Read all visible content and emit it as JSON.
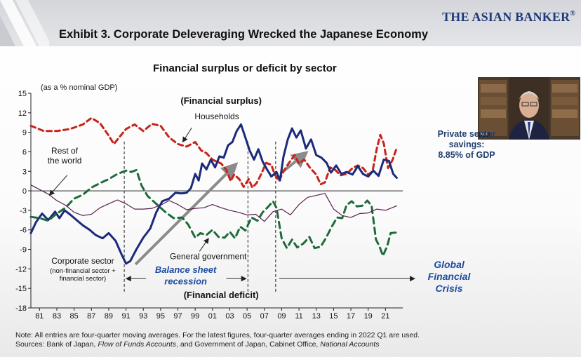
{
  "brand": "THE ASIAN BANKER",
  "brand_registered": "®",
  "exhibit_title": "Exhibit 3. Corporate Deleveraging Wrecked the Japanese Economy",
  "chart_title": "Financial surplus or deficit by sector",
  "speaker_tag": "Koo",
  "side_note": [
    "Private sector",
    "savings:",
    "8.85% of GDP"
  ],
  "gfc_label": [
    "Global",
    "Financial",
    "Crisis"
  ],
  "footnote": {
    "line1": "Note: All entries are four-quarter moving averages. For the latest figures, four-quarter averages ending in 2022 Q1 are used.",
    "line2_pre": "Sources: Bank of Japan, ",
    "line2_src1": "Flow of Funds Accounts",
    "line2_mid": ", and Government of Japan, Cabinet Office, ",
    "line2_src2": "National Accounts"
  },
  "colors": {
    "households": "#c8231b",
    "corporate": "#1b2a7a",
    "government": "#1e6b3a",
    "rest_of_world": "#5a1f4e",
    "accent_blue": "#1e4ca1",
    "brand_blue": "#1f3a78"
  },
  "chart_data": {
    "type": "line",
    "title": "Financial surplus or deficit by sector",
    "ylabel": "(as a % nominal GDP)",
    "ylim": [
      -18,
      15
    ],
    "yticks": [
      15,
      12,
      9,
      6,
      3,
      0,
      -3,
      -6,
      -9,
      -12,
      -15,
      -18
    ],
    "xlim": [
      1980,
      2023
    ],
    "xtick_years": [
      1981,
      1983,
      1985,
      1987,
      1989,
      1991,
      1993,
      1995,
      1997,
      1999,
      2001,
      2003,
      2005,
      2007,
      2009,
      2011,
      2013,
      2015,
      2017,
      2019,
      2021
    ],
    "xtick_labels": [
      "81",
      "83",
      "85",
      "87",
      "89",
      "91",
      "93",
      "95",
      "97",
      "99",
      "01",
      "03",
      "05",
      "07",
      "09",
      "11",
      "13",
      "15",
      "17",
      "19",
      "21"
    ],
    "grid": false,
    "series": [
      {
        "name": "Households",
        "style": "dashed",
        "points": [
          [
            1980,
            10
          ],
          [
            1981.5,
            9.2
          ],
          [
            1983,
            9.2
          ],
          [
            1984.5,
            9.5
          ],
          [
            1986,
            10.2
          ],
          [
            1987,
            11.2
          ],
          [
            1988,
            10.4
          ],
          [
            1989,
            8.5
          ],
          [
            1989.6,
            7.2
          ],
          [
            1990.2,
            8.2
          ],
          [
            1991,
            9.5
          ],
          [
            1992,
            10.2
          ],
          [
            1993,
            9.2
          ],
          [
            1994,
            10.3
          ],
          [
            1995,
            10
          ],
          [
            1996,
            8.2
          ],
          [
            1997,
            7.2
          ],
          [
            1998,
            6.8
          ],
          [
            1999,
            7.5
          ],
          [
            1999.7,
            6.2
          ],
          [
            2000.3,
            5.8
          ],
          [
            2001,
            4.8
          ],
          [
            2002,
            4.2
          ],
          [
            2002.6,
            3.2
          ],
          [
            2003.1,
            1.5
          ],
          [
            2003.5,
            2.5
          ],
          [
            2004.1,
            1.8
          ],
          [
            2004.6,
            0.6
          ],
          [
            2005.2,
            1.8
          ],
          [
            2005.6,
            0.5
          ],
          [
            2006.1,
            1.2
          ],
          [
            2006.6,
            2.5
          ],
          [
            2007.2,
            4.3
          ],
          [
            2007.8,
            4
          ],
          [
            2008.2,
            2.5
          ],
          [
            2008.7,
            1.5
          ],
          [
            2009.2,
            3
          ],
          [
            2009.8,
            4.2
          ],
          [
            2010.5,
            5.5
          ],
          [
            2011,
            4.2
          ],
          [
            2011.6,
            4.8
          ],
          [
            2012.3,
            3.5
          ],
          [
            2013,
            2.5
          ],
          [
            2013.5,
            1
          ],
          [
            2014,
            1.3
          ],
          [
            2014.6,
            3.6
          ],
          [
            2015.2,
            3.2
          ],
          [
            2015.8,
            2.4
          ],
          [
            2016.5,
            2.6
          ],
          [
            2017.2,
            3.5
          ],
          [
            2017.8,
            3.9
          ],
          [
            2018.4,
            3.5
          ],
          [
            2019,
            2.5
          ],
          [
            2019.5,
            3
          ],
          [
            2020,
            6.5
          ],
          [
            2020.4,
            8.6
          ],
          [
            2020.8,
            7.3
          ],
          [
            2021.3,
            3.5
          ],
          [
            2021.8,
            4.7
          ],
          [
            2022.3,
            6.6
          ]
        ]
      },
      {
        "name": "Corporate sector",
        "style": "solid",
        "points": [
          [
            1980,
            -6.5
          ],
          [
            1980.6,
            -4.8
          ],
          [
            1981.3,
            -3.5
          ],
          [
            1982,
            -4.5
          ],
          [
            1982.8,
            -3.2
          ],
          [
            1983.3,
            -4.2
          ],
          [
            1983.9,
            -3
          ],
          [
            1984.5,
            -3.6
          ],
          [
            1985.2,
            -4.4
          ],
          [
            1986,
            -5.3
          ],
          [
            1986.8,
            -6
          ],
          [
            1987.5,
            -6.8
          ],
          [
            1988.3,
            -7.3
          ],
          [
            1989,
            -6.5
          ],
          [
            1989.8,
            -7.7
          ],
          [
            1990.5,
            -9.8
          ],
          [
            1991,
            -11.2
          ],
          [
            1991.5,
            -10.8
          ],
          [
            1992.2,
            -9
          ],
          [
            1993,
            -7.2
          ],
          [
            1993.8,
            -5.8
          ],
          [
            1994.5,
            -3.3
          ],
          [
            1995.2,
            -1.6
          ],
          [
            1996,
            -1.2
          ],
          [
            1996.7,
            -0.3
          ],
          [
            1997.4,
            -0.4
          ],
          [
            1998,
            -0.3
          ],
          [
            1998.5,
            0.4
          ],
          [
            1999,
            2.6
          ],
          [
            1999.4,
            1.6
          ],
          [
            1999.8,
            4.2
          ],
          [
            2000.3,
            3.3
          ],
          [
            2000.8,
            4.8
          ],
          [
            2001.3,
            3.6
          ],
          [
            2001.8,
            5.3
          ],
          [
            2002.3,
            5.1
          ],
          [
            2002.8,
            7
          ],
          [
            2003.3,
            7.5
          ],
          [
            2003.8,
            9.2
          ],
          [
            2004.3,
            10.2
          ],
          [
            2004.8,
            8.2
          ],
          [
            2005.3,
            6.2
          ],
          [
            2005.8,
            4.8
          ],
          [
            2006.3,
            6.4
          ],
          [
            2006.8,
            4.5
          ],
          [
            2007.3,
            3.3
          ],
          [
            2007.8,
            2.2
          ],
          [
            2008.4,
            2.9
          ],
          [
            2008.8,
            1.6
          ],
          [
            2009.2,
            5.2
          ],
          [
            2009.7,
            7.9
          ],
          [
            2010.2,
            9.6
          ],
          [
            2010.7,
            8.2
          ],
          [
            2011.2,
            9.3
          ],
          [
            2011.8,
            6.5
          ],
          [
            2012.4,
            7.9
          ],
          [
            2013,
            5.5
          ],
          [
            2013.6,
            5.1
          ],
          [
            2014.2,
            4.3
          ],
          [
            2014.7,
            2.8
          ],
          [
            2015.3,
            3.9
          ],
          [
            2015.9,
            2.6
          ],
          [
            2016.5,
            2.9
          ],
          [
            2017.2,
            2.5
          ],
          [
            2017.8,
            3.8
          ],
          [
            2018.4,
            2.6
          ],
          [
            2019,
            2.2
          ],
          [
            2019.6,
            3.1
          ],
          [
            2020.2,
            2.3
          ],
          [
            2020.8,
            4.8
          ],
          [
            2021.4,
            4.6
          ],
          [
            2021.9,
            2.6
          ],
          [
            2022.3,
            2
          ]
        ]
      },
      {
        "name": "General government",
        "style": "dashed",
        "points": [
          [
            1980,
            -4
          ],
          [
            1981,
            -4.2
          ],
          [
            1982,
            -4.6
          ],
          [
            1983,
            -3.5
          ],
          [
            1984,
            -2.6
          ],
          [
            1985,
            -1.2
          ],
          [
            1986,
            -0.6
          ],
          [
            1987,
            0.5
          ],
          [
            1988,
            1.2
          ],
          [
            1989,
            1.8
          ],
          [
            1990,
            2.6
          ],
          [
            1991,
            3.1
          ],
          [
            1991.6,
            2.9
          ],
          [
            1992.2,
            3.2
          ],
          [
            1992.8,
            0.8
          ],
          [
            1993.5,
            -0.8
          ],
          [
            1994.5,
            -2
          ],
          [
            1995.5,
            -3.2
          ],
          [
            1996.5,
            -4.2
          ],
          [
            1997.5,
            -4.1
          ],
          [
            1998.2,
            -5.2
          ],
          [
            1999,
            -7.2
          ],
          [
            1999.6,
            -6.5
          ],
          [
            2000.3,
            -6.8
          ],
          [
            2001,
            -6
          ],
          [
            2001.7,
            -7.1
          ],
          [
            2002.4,
            -7.2
          ],
          [
            2003,
            -6.3
          ],
          [
            2003.6,
            -7.3
          ],
          [
            2004.2,
            -5.5
          ],
          [
            2004.8,
            -6.1
          ],
          [
            2005.5,
            -4.1
          ],
          [
            2006.2,
            -4.6
          ],
          [
            2006.8,
            -3.3
          ],
          [
            2007.4,
            -2.5
          ],
          [
            2008,
            -1.6
          ],
          [
            2008.4,
            -2.6
          ],
          [
            2009,
            -7.3
          ],
          [
            2009.6,
            -8.8
          ],
          [
            2010.2,
            -7.5
          ],
          [
            2010.8,
            -8.7
          ],
          [
            2011.5,
            -8.1
          ],
          [
            2012.2,
            -7.1
          ],
          [
            2012.8,
            -8.8
          ],
          [
            2013.5,
            -8.6
          ],
          [
            2014.1,
            -7.3
          ],
          [
            2014.8,
            -5.5
          ],
          [
            2015.4,
            -4.1
          ],
          [
            2016,
            -4.2
          ],
          [
            2016.5,
            -2.2
          ],
          [
            2017.1,
            -1.6
          ],
          [
            2017.7,
            -2.4
          ],
          [
            2018.3,
            -2.3
          ],
          [
            2018.9,
            -1.5
          ],
          [
            2019.4,
            -2.3
          ],
          [
            2019.9,
            -7.5
          ],
          [
            2020.3,
            -8.5
          ],
          [
            2020.7,
            -10
          ],
          [
            2021.2,
            -8.5
          ],
          [
            2021.6,
            -6.5
          ],
          [
            2022.3,
            -6.4
          ]
        ]
      },
      {
        "name": "Rest of the world",
        "style": "solid-thin",
        "points": [
          [
            1980,
            0.9
          ],
          [
            1981,
            0.2
          ],
          [
            1982,
            -0.5
          ],
          [
            1983,
            -1.5
          ],
          [
            1984,
            -2.2
          ],
          [
            1985,
            -3.3
          ],
          [
            1986,
            -3.8
          ],
          [
            1987,
            -3.6
          ],
          [
            1988,
            -2.6
          ],
          [
            1989,
            -2
          ],
          [
            1990,
            -1.4
          ],
          [
            1991,
            -2
          ],
          [
            1992,
            -2.8
          ],
          [
            1993,
            -2.8
          ],
          [
            1994,
            -2.7
          ],
          [
            1995,
            -2.2
          ],
          [
            1996,
            -1.5
          ],
          [
            1997,
            -2.1
          ],
          [
            1998,
            -2.9
          ],
          [
            1999,
            -2.7
          ],
          [
            2000,
            -2.6
          ],
          [
            2001,
            -2.1
          ],
          [
            2002,
            -2.6
          ],
          [
            2003,
            -3
          ],
          [
            2004,
            -3.3
          ],
          [
            2005,
            -3.7
          ],
          [
            2006,
            -3.6
          ],
          [
            2007,
            -4.7
          ],
          [
            2008,
            -3.2
          ],
          [
            2009,
            -2.8
          ],
          [
            2010,
            -3.7
          ],
          [
            2011,
            -2.1
          ],
          [
            2012,
            -1
          ],
          [
            2013,
            -0.7
          ],
          [
            2014,
            -0.4
          ],
          [
            2015,
            -2.8
          ],
          [
            2016,
            -3.8
          ],
          [
            2017,
            -4.1
          ],
          [
            2018,
            -3.5
          ],
          [
            2019,
            -3.4
          ],
          [
            2020,
            -2.8
          ],
          [
            2021,
            -3
          ],
          [
            2022.3,
            -2.3
          ]
        ]
      }
    ],
    "annotations": {
      "surplus": "(Financial surplus)",
      "deficit": "(Financial deficit)",
      "households": "Households",
      "rest_of_world": [
        "Rest of",
        "the world"
      ],
      "corporate": "Corporate sector",
      "corporate_sub": [
        "(non-financial sector +",
        "financial sector)"
      ],
      "government": "General government",
      "recession": [
        "Balance sheet",
        "recession"
      ]
    },
    "markers": {
      "recession_start": 1990.8,
      "recession_end": 2005.1,
      "gfc_line": 2008.3
    }
  }
}
